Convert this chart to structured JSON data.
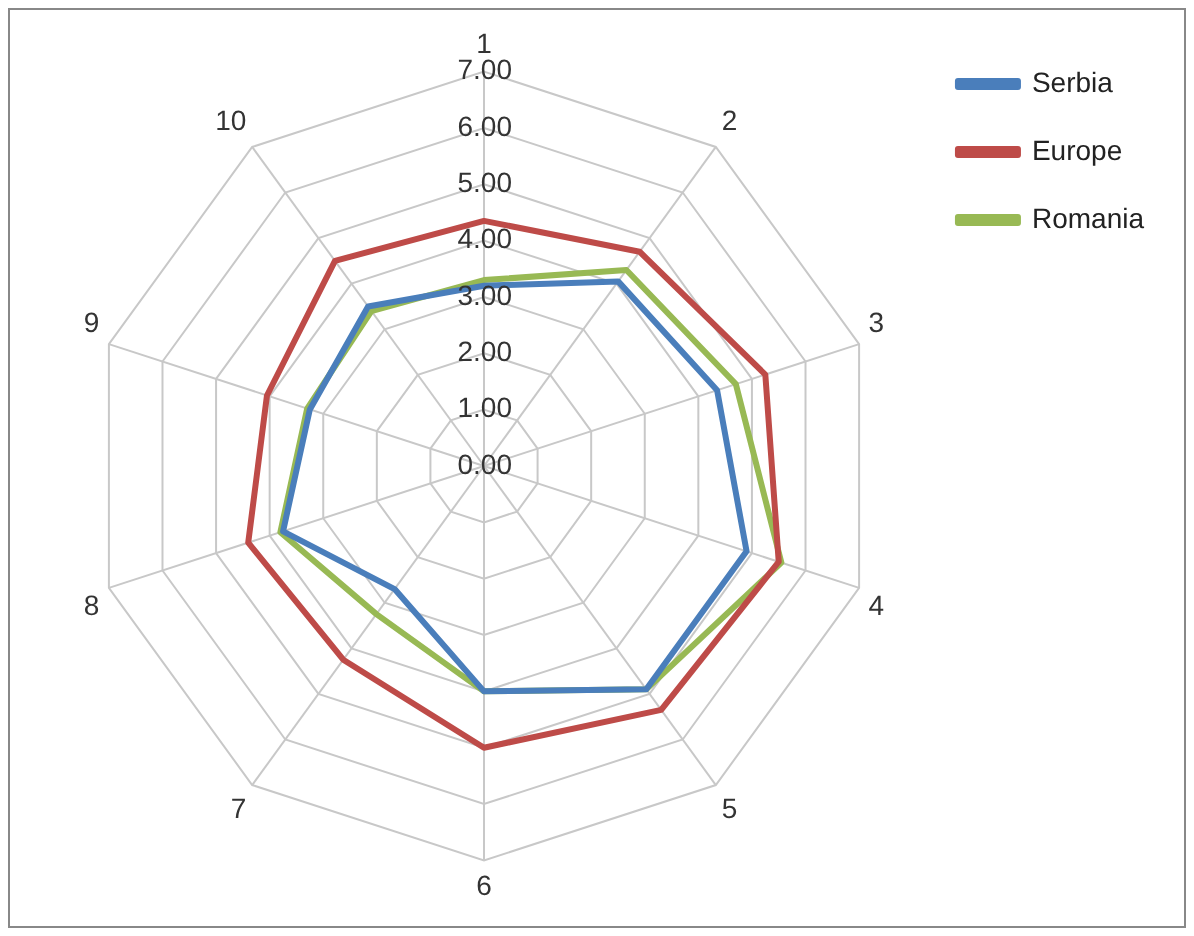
{
  "chart_data": {
    "type": "radar",
    "categories": [
      "1",
      "2",
      "3",
      "4",
      "5",
      "6",
      "7",
      "8",
      "9",
      "10"
    ],
    "series": [
      {
        "name": "Serbia",
        "color": "#4a7ebb",
        "values": [
          3.2,
          4.05,
          4.35,
          4.9,
          4.9,
          4.0,
          2.7,
          3.75,
          3.25,
          3.5
        ]
      },
      {
        "name": "Europe",
        "color": "#be4b48",
        "values": [
          4.35,
          4.7,
          5.25,
          5.5,
          5.35,
          5.0,
          4.25,
          4.4,
          4.05,
          4.5
        ]
      },
      {
        "name": "Romania",
        "color": "#98b954",
        "values": [
          3.3,
          4.3,
          4.7,
          5.55,
          4.9,
          4.0,
          3.25,
          3.8,
          3.3,
          3.4
        ]
      }
    ],
    "ylim": [
      0,
      7
    ],
    "yticks": [
      {
        "value": 0,
        "label": "0.00"
      },
      {
        "value": 1,
        "label": "1.00"
      },
      {
        "value": 2,
        "label": "2.00"
      },
      {
        "value": 3,
        "label": "3.00"
      },
      {
        "value": 4,
        "label": "4.00"
      },
      {
        "value": 5,
        "label": "5.00"
      },
      {
        "value": 6,
        "label": "6.00"
      },
      {
        "value": 7,
        "label": "7.00"
      }
    ],
    "grid": true,
    "legend": "top right",
    "marker": "none"
  }
}
